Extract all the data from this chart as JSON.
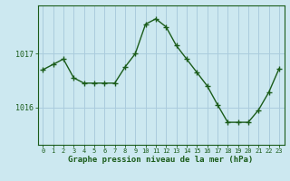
{
  "x": [
    0,
    1,
    2,
    3,
    4,
    5,
    6,
    7,
    8,
    9,
    10,
    11,
    12,
    13,
    14,
    15,
    16,
    17,
    18,
    19,
    20,
    21,
    22,
    23
  ],
  "y": [
    1016.7,
    1016.8,
    1016.9,
    1016.55,
    1016.45,
    1016.45,
    1016.45,
    1016.45,
    1016.75,
    1017.0,
    1017.55,
    1017.65,
    1017.5,
    1017.15,
    1016.9,
    1016.65,
    1016.4,
    1016.05,
    1015.72,
    1015.72,
    1015.72,
    1015.95,
    1016.28,
    1016.72
  ],
  "line_color": "#1a5c1a",
  "marker": "+",
  "marker_size": 4,
  "background_color": "#cce8f0",
  "grid_color": "#aaccdd",
  "xlabel": "Graphe pression niveau de la mer (hPa)",
  "xlabel_color": "#1a5c1a",
  "tick_color": "#1a5c1a",
  "spine_color": "#1a5c1a",
  "ytick_labels": [
    "1016",
    "1017"
  ],
  "ytick_values": [
    1016.0,
    1017.0
  ],
  "ylim": [
    1015.3,
    1017.9
  ],
  "xlim": [
    -0.5,
    23.5
  ],
  "xtick_labels": [
    "0",
    "1",
    "2",
    "3",
    "4",
    "5",
    "6",
    "7",
    "8",
    "9",
    "10",
    "11",
    "12",
    "13",
    "14",
    "15",
    "16",
    "17",
    "18",
    "19",
    "20",
    "21",
    "22",
    "23"
  ],
  "xlabel_fontsize": 6.5,
  "xtick_fontsize": 5.0,
  "ytick_fontsize": 6.0
}
